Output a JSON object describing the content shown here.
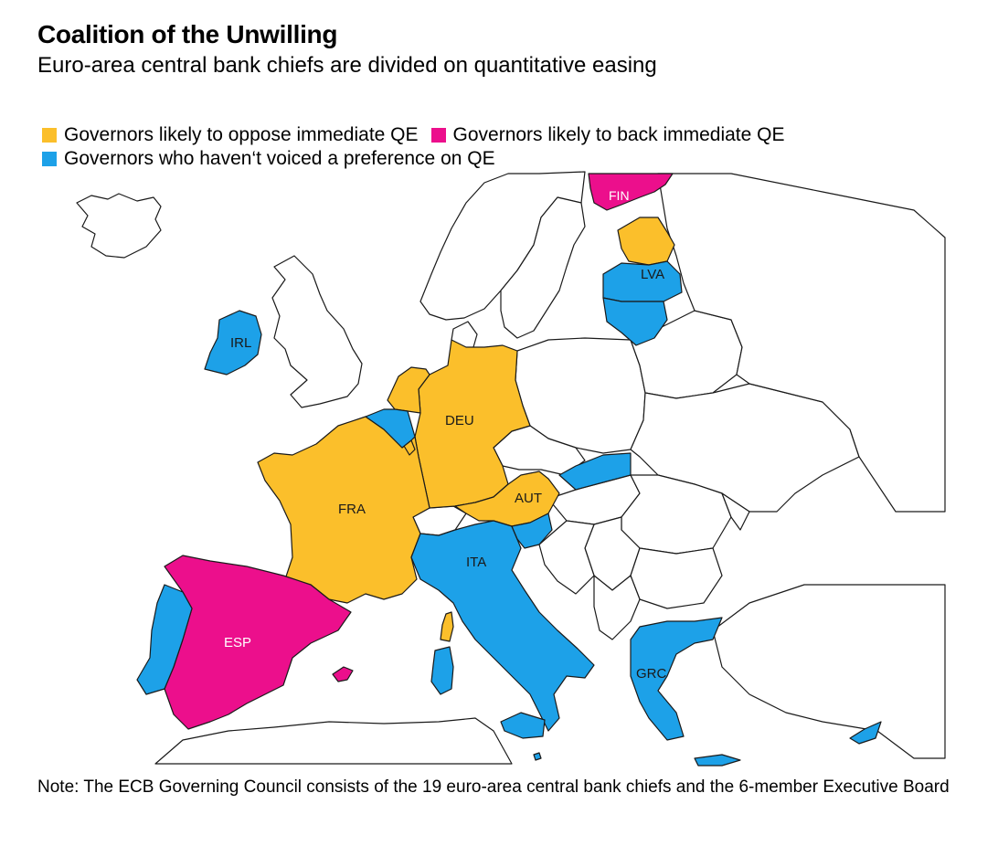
{
  "header": {
    "title": "Coalition of the Unwilling",
    "subtitle": "Euro-area central bank chiefs are divided on quantitative easing"
  },
  "legend": {
    "items": [
      {
        "label": "Governors likely to oppose immediate QE",
        "color": "#fbbf2b"
      },
      {
        "label": "Governors likely to back immediate QE",
        "color": "#ec0f8c"
      },
      {
        "label": "Governors who haven‘t voiced a preference on QE",
        "color": "#1da1e8"
      }
    ]
  },
  "map": {
    "country_labels": {
      "FIN": "FIN",
      "LVA": "LVA",
      "IRL": "IRL",
      "DEU": "DEU",
      "FRA": "FRA",
      "AUT": "AUT",
      "ITA": "ITA",
      "ESP": "ESP",
      "GRC": "GRC"
    },
    "groups": {
      "oppose": [
        "EST",
        "DEU",
        "NLD",
        "FRA",
        "AUT",
        "LUX",
        "CORSICA"
      ],
      "back": [
        "FIN",
        "ESP"
      ],
      "no_preference": [
        "LVA",
        "LTU",
        "IRL",
        "BEL",
        "ITA",
        "SVK",
        "SVN",
        "PRT",
        "GRC",
        "CYP",
        "MLT"
      ]
    }
  },
  "footer": {
    "note": "Note: The ECB Governing Council consists of the 19 euro-area central bank chiefs and the 6-member Executive Board"
  }
}
